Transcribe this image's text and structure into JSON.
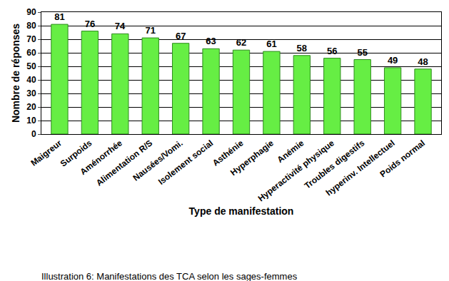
{
  "chart_data": {
    "type": "bar",
    "title": "Illustration 6: Manifestations des TCA selon les sages-femmes",
    "x_label": "Type de manifestation",
    "y_label": "Nombre de réponses",
    "categories": [
      "Maigreur",
      "Surpoids",
      "Aménorrhée",
      "Alimentation R/S",
      "Nausées/Vomi.",
      "Isolement social",
      "Asthénie",
      "Hyperphagie",
      "Anémie",
      "Hyperactivité physique",
      "Troubles digestifs",
      "hyperinv. Intellectuel",
      "Poids normal"
    ],
    "values": [
      81,
      76,
      74,
      71,
      67,
      63,
      62,
      61,
      58,
      56,
      55,
      49,
      48
    ],
    "color": "#66ee44",
    "ylim": [
      0,
      90
    ],
    "yticks": [
      0,
      10,
      20,
      30,
      40,
      50,
      60,
      70,
      80,
      90
    ],
    "grid": true,
    "data_labels": true
  }
}
